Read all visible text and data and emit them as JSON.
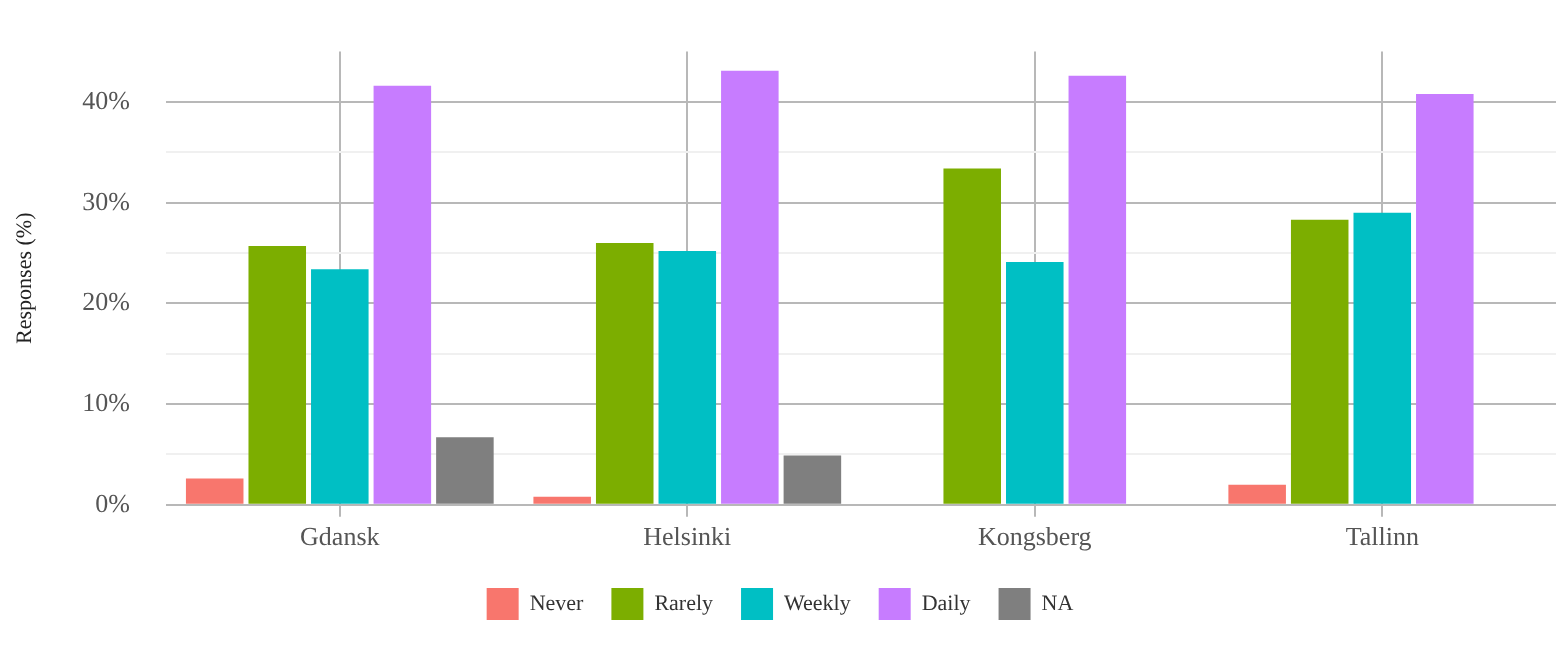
{
  "chart_data": {
    "type": "bar",
    "ylabel": "Responses (%)",
    "categories": [
      "Gdansk",
      "Helsinki",
      "Kongsberg",
      "Tallinn"
    ],
    "series": [
      {
        "name": "Never",
        "color": "#f8766d",
        "values": [
          2.6,
          0.8,
          null,
          2.0
        ]
      },
      {
        "name": "Rarely",
        "color": "#7cae00",
        "values": [
          25.7,
          26.0,
          33.4,
          28.3
        ]
      },
      {
        "name": "Weekly",
        "color": "#00bfc4",
        "values": [
          23.4,
          25.2,
          24.1,
          29.0
        ]
      },
      {
        "name": "Daily",
        "color": "#c77cff",
        "values": [
          41.6,
          43.1,
          42.6,
          40.8
        ]
      },
      {
        "name": "NA",
        "color": "#7f7f7f",
        "values": [
          6.7,
          4.9,
          null,
          null
        ]
      }
    ],
    "ylim": [
      0,
      45
    ],
    "yticks": [
      {
        "value": 0,
        "label": "0%"
      },
      {
        "value": 5,
        "label": null
      },
      {
        "value": 10,
        "label": "10%"
      },
      {
        "value": 15,
        "label": null
      },
      {
        "value": 20,
        "label": "20%"
      },
      {
        "value": 25,
        "label": null
      },
      {
        "value": 30,
        "label": "30%"
      },
      {
        "value": 35,
        "label": null
      },
      {
        "value": 40,
        "label": "40%"
      }
    ],
    "grid": true,
    "legend": "bottom"
  }
}
